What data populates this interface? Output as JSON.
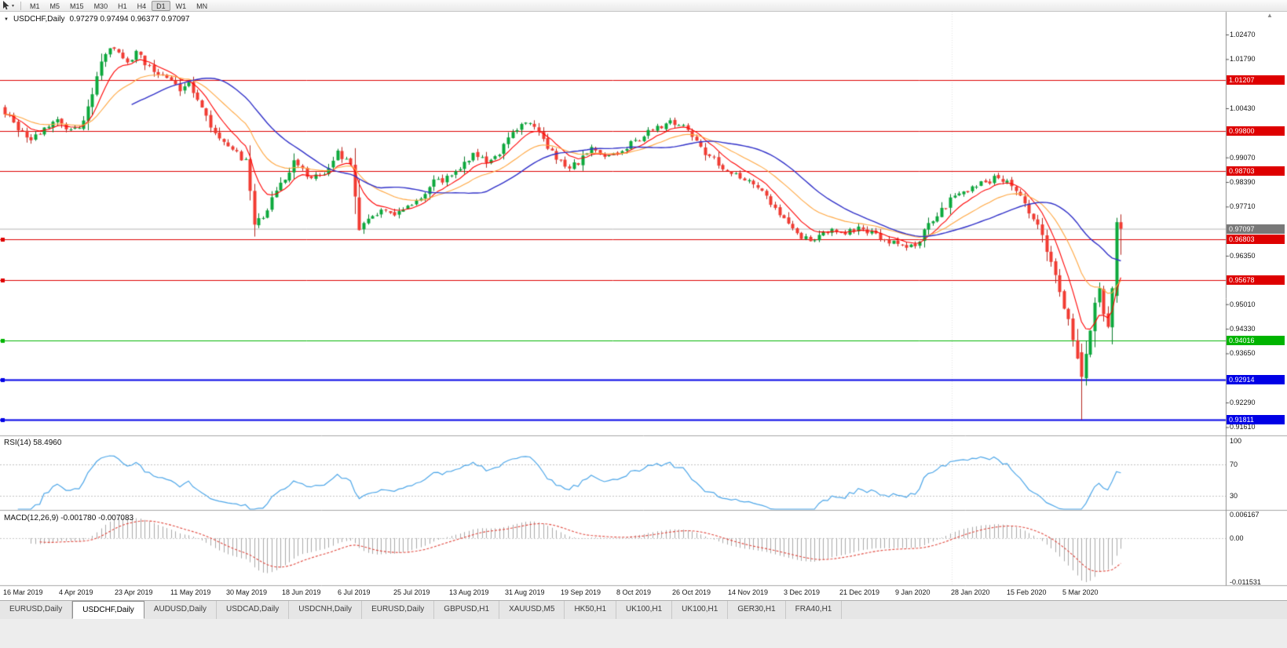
{
  "toolbar": {
    "timeframes": [
      {
        "label": "M1",
        "active": false
      },
      {
        "label": "M5",
        "active": false
      },
      {
        "label": "M15",
        "active": false
      },
      {
        "label": "M30",
        "active": false
      },
      {
        "label": "H1",
        "active": false
      },
      {
        "label": "H4",
        "active": false
      },
      {
        "label": "D1",
        "active": true
      },
      {
        "label": "W1",
        "active": false
      },
      {
        "label": "MN",
        "active": false
      }
    ]
  },
  "chart": {
    "symbol_title": "USDCHF,Daily",
    "ohlc_text": "0.97279 0.97494 0.96377 0.97097",
    "current_price": {
      "v": 0.97097,
      "label": "0.97097",
      "color": "#787878"
    },
    "axis_ticks": [
      {
        "v": 1.0247,
        "label": "1.02470"
      },
      {
        "v": 1.0179,
        "label": "1.01790"
      },
      {
        "v": 1.0043,
        "label": "1.00430"
      },
      {
        "v": 0.9907,
        "label": "0.99070"
      },
      {
        "v": 0.9839,
        "label": "0.98390"
      },
      {
        "v": 0.9771,
        "label": "0.97710"
      },
      {
        "v": 0.9635,
        "label": "0.96350"
      },
      {
        "v": 0.9501,
        "label": "0.95010"
      },
      {
        "v": 0.9433,
        "label": "0.94330"
      },
      {
        "v": 0.9365,
        "label": "0.93650"
      },
      {
        "v": 0.9229,
        "label": "0.92290"
      },
      {
        "v": 0.9161,
        "label": "0.91610"
      }
    ],
    "levels": [
      {
        "v": 1.01207,
        "label": "1.01207",
        "color": "#DE0000",
        "lw": 1,
        "handle": false
      },
      {
        "v": 0.998,
        "label": "0.99800",
        "color": "#DE0000",
        "lw": 1,
        "handle": false
      },
      {
        "v": 0.98703,
        "label": "0.98703",
        "color": "#DE0000",
        "lw": 1,
        "handle": false
      },
      {
        "v": 0.96803,
        "label": "0.96803",
        "color": "#DE0000",
        "lw": 1,
        "handle": true
      },
      {
        "v": 0.95678,
        "label": "0.95678",
        "color": "#DE0000",
        "lw": 1,
        "handle": true
      },
      {
        "v": 0.94016,
        "label": "0.94016",
        "color": "#00B400",
        "lw": 1,
        "handle": true
      },
      {
        "v": 0.92914,
        "label": "0.92914",
        "color": "#0000E6",
        "lw": 2,
        "handle": true
      },
      {
        "v": 0.91811,
        "label": "0.91811",
        "color": "#0000E6",
        "lw": 2,
        "handle": true
      }
    ]
  },
  "chart_data": {
    "type": "candlestick",
    "symbol": "USDCHF",
    "period": "Daily",
    "bars": 256,
    "visible_price_range": [
      0.9138,
      1.031
    ],
    "last_bar_ohlc": {
      "open": 0.97279,
      "high": 0.97494,
      "low": 0.96377,
      "close": 0.97097
    },
    "horizontal_levels": [
      1.01207,
      0.998,
      0.98703,
      0.96803,
      0.95678,
      0.94016,
      0.92914,
      0.91811
    ],
    "close_path": [
      [
        0,
        1.0035
      ],
      [
        3,
        0.999
      ],
      [
        6,
        0.9952
      ],
      [
        9,
        0.9985
      ],
      [
        12,
        1.0008
      ],
      [
        15,
        0.9982
      ],
      [
        18,
        1.0006
      ],
      [
        20,
        1.009
      ],
      [
        22,
        1.018
      ],
      [
        24,
        1.0218
      ],
      [
        26,
        1.019
      ],
      [
        28,
        1.016
      ],
      [
        30,
        1.0198
      ],
      [
        32,
        1.017
      ],
      [
        34,
        1.0145
      ],
      [
        37,
        1.012
      ],
      [
        40,
        1.0098
      ],
      [
        42,
        1.0116
      ],
      [
        45,
        1.004
      ],
      [
        47,
        0.999
      ],
      [
        50,
        0.9948
      ],
      [
        53,
        0.9918
      ],
      [
        55,
        0.9898
      ],
      [
        57,
        0.973
      ],
      [
        59,
        0.9748
      ],
      [
        61,
        0.9788
      ],
      [
        63,
        0.983
      ],
      [
        66,
        0.9896
      ],
      [
        68,
        0.987
      ],
      [
        70,
        0.9852
      ],
      [
        73,
        0.987
      ],
      [
        76,
        0.992
      ],
      [
        79,
        0.988
      ],
      [
        81,
        0.97
      ],
      [
        83,
        0.9742
      ],
      [
        86,
        0.9758
      ],
      [
        89,
        0.9744
      ],
      [
        92,
        0.9768
      ],
      [
        95,
        0.98
      ],
      [
        98,
        0.9838
      ],
      [
        101,
        0.9852
      ],
      [
        104,
        0.987
      ],
      [
        107,
        0.9916
      ],
      [
        110,
        0.9898
      ],
      [
        113,
        0.9924
      ],
      [
        116,
        0.9972
      ],
      [
        119,
        1.0006
      ],
      [
        121,
        0.999
      ],
      [
        123,
        0.9958
      ],
      [
        126,
        0.9906
      ],
      [
        129,
        0.9874
      ],
      [
        131,
        0.9896
      ],
      [
        134,
        0.9936
      ],
      [
        137,
        0.9902
      ],
      [
        140,
        0.9926
      ],
      [
        143,
        0.9944
      ],
      [
        146,
        0.9968
      ],
      [
        149,
        0.9988
      ],
      [
        152,
        1.0014
      ],
      [
        155,
        0.9992
      ],
      [
        158,
        0.995
      ],
      [
        161,
        0.991
      ],
      [
        164,
        0.988
      ],
      [
        167,
        0.9856
      ],
      [
        170,
        0.9836
      ],
      [
        173,
        0.9806
      ],
      [
        176,
        0.9764
      ],
      [
        179,
        0.9716
      ],
      [
        182,
        0.969
      ],
      [
        185,
        0.9678
      ],
      [
        188,
        0.9706
      ],
      [
        191,
        0.9692
      ],
      [
        194,
        0.971
      ],
      [
        197,
        0.9702
      ],
      [
        200,
        0.9686
      ],
      [
        203,
        0.9672
      ],
      [
        206,
        0.9648
      ],
      [
        208,
        0.9668
      ],
      [
        210,
        0.97
      ],
      [
        213,
        0.9748
      ],
      [
        216,
        0.9788
      ],
      [
        219,
        0.9812
      ],
      [
        222,
        0.9826
      ],
      [
        225,
        0.9844
      ],
      [
        227,
        0.985
      ],
      [
        229,
        0.984
      ],
      [
        231,
        0.9812
      ],
      [
        233,
        0.9772
      ],
      [
        235,
        0.974
      ],
      [
        237,
        0.9688
      ],
      [
        239,
        0.9612
      ],
      [
        241,
        0.954
      ],
      [
        243,
        0.9452
      ],
      [
        245,
        0.936
      ],
      [
        246,
        0.9302
      ],
      [
        247,
        0.937
      ],
      [
        248,
        0.9435
      ],
      [
        249,
        0.9505
      ],
      [
        250,
        0.9545
      ],
      [
        251,
        0.9468
      ],
      [
        252,
        0.944
      ],
      [
        253,
        0.955
      ],
      [
        254,
        0.9728
      ],
      [
        255,
        0.971
      ]
    ],
    "key_bars": [
      {
        "index": 246,
        "open": 0.9368,
        "high": 0.9392,
        "low": 0.91815,
        "close": 0.93
      },
      {
        "index": 254,
        "open": 0.9524,
        "high": 0.974,
        "low": 0.9505,
        "close": 0.9728
      },
      {
        "index": 255,
        "open": 0.97279,
        "high": 0.97494,
        "low": 0.96377,
        "close": 0.97097
      }
    ],
    "up_color": "#0CA93C",
    "down_color": "#F23B32",
    "moving_averages": [
      {
        "type": "ema",
        "period": 8,
        "color": "#FF0000"
      },
      {
        "type": "ema",
        "period": 20,
        "color": "#FFA640"
      },
      {
        "type": "sma",
        "period": 30,
        "color": "#3030C8"
      }
    ],
    "dates": [
      "16 Mar 2019",
      "4 Apr 2019",
      "23 Apr 2019",
      "11 May 2019",
      "30 May 2019",
      "18 Jun 2019",
      "6 Jul 2019",
      "25 Jul 2019",
      "13 Aug 2019",
      "31 Aug 2019",
      "19 Sep 2019",
      "8 Oct 2019",
      "26 Oct 2019",
      "14 Nov 2019",
      "3 Dec 2019",
      "21 Dec 2019",
      "9 Jan 2020",
      "28 Jan 2020",
      "15 Feb 2020",
      "5 Mar 2020"
    ]
  },
  "rsi": {
    "label": "RSI(14) 58.4960",
    "period": 14,
    "value": 58.496,
    "color": "#4DA6E8",
    "axis": [
      {
        "v": 100,
        "label": "100"
      },
      {
        "v": 70,
        "label": "70"
      },
      {
        "v": 30,
        "label": "30"
      }
    ],
    "guide_levels": [
      70,
      30
    ]
  },
  "macd": {
    "label": "MACD(12,26,9) -0.001780 -0.007083",
    "fast": 12,
    "slow": 26,
    "signal": 9,
    "hist_color": "#A8A8A8",
    "signal_color": "#E0483E",
    "axis": [
      {
        "v": 0.006167,
        "label": "0.006167"
      },
      {
        "v": 0,
        "label": "0.00"
      },
      {
        "v": -0.011531,
        "label": "-0.011531"
      }
    ]
  },
  "tabs": [
    {
      "label": "EURUSD,Daily",
      "active": false
    },
    {
      "label": "USDCHF,Daily",
      "active": true
    },
    {
      "label": "AUDUSD,Daily",
      "active": false
    },
    {
      "label": "USDCAD,Daily",
      "active": false
    },
    {
      "label": "USDCNH,Daily",
      "active": false
    },
    {
      "label": "EURUSD,Daily",
      "active": false
    },
    {
      "label": "GBPUSD,H1",
      "active": false
    },
    {
      "label": "XAUUSD,M5",
      "active": false
    },
    {
      "label": "HK50,H1",
      "active": false
    },
    {
      "label": "UK100,H1",
      "active": false
    },
    {
      "label": "UK100,H1",
      "active": false
    },
    {
      "label": "GER30,H1",
      "active": false
    },
    {
      "label": "FRA40,H1",
      "active": false
    }
  ]
}
